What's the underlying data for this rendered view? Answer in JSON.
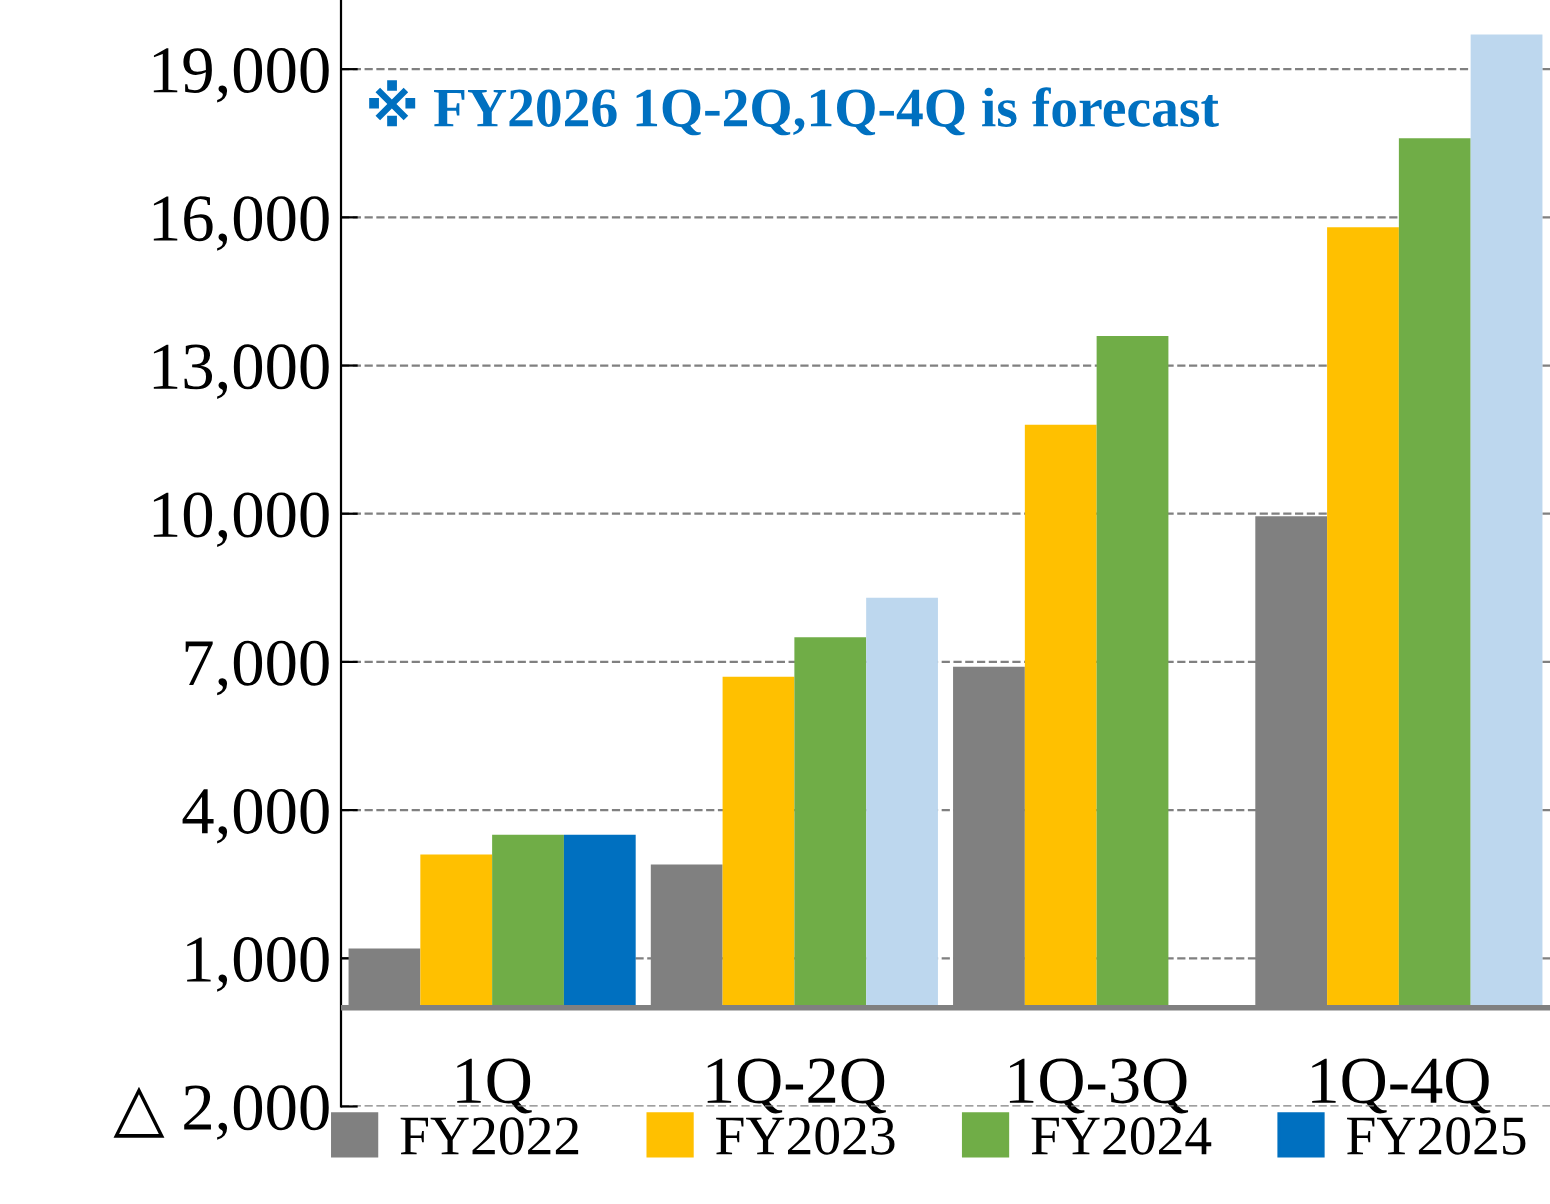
{
  "chart_data": {
    "type": "bar",
    "categories": [
      "1Q",
      "1Q-2Q",
      "1Q-3Q",
      "1Q-4Q"
    ],
    "series": [
      {
        "name": "FY2022",
        "color": "#808080",
        "values": [
          1200,
          2900,
          6900,
          9950
        ]
      },
      {
        "name": "FY2023",
        "color": "#ffc000",
        "values": [
          3100,
          6700,
          11800,
          15800
        ]
      },
      {
        "name": "FY2024",
        "color": "#70ad47",
        "values": [
          3500,
          7500,
          13600,
          17600
        ]
      },
      {
        "name": "FY2025",
        "color": "#0070c0",
        "colors": [
          "#0070c0",
          "#bdd7ee",
          "#bdd7ee",
          "#bdd7ee"
        ],
        "values": [
          3500,
          8300,
          null,
          19700
        ]
      }
    ],
    "ylim": [
      -2000,
      20400
    ],
    "yticks": [
      {
        "value": -2000,
        "label": "△ 2,000"
      },
      {
        "value": 1000,
        "label": "1,000"
      },
      {
        "value": 4000,
        "label": "4,000"
      },
      {
        "value": 7000,
        "label": "7,000"
      },
      {
        "value": 10000,
        "label": "10,000"
      },
      {
        "value": 13000,
        "label": "13,000"
      },
      {
        "value": 16000,
        "label": "16,000"
      },
      {
        "value": 19000,
        "label": "19,000"
      }
    ],
    "grid": "y",
    "legend": "bottom",
    "annotations": [
      "※ FY2026 1Q-2Q,1Q-4Q is forecast"
    ]
  }
}
